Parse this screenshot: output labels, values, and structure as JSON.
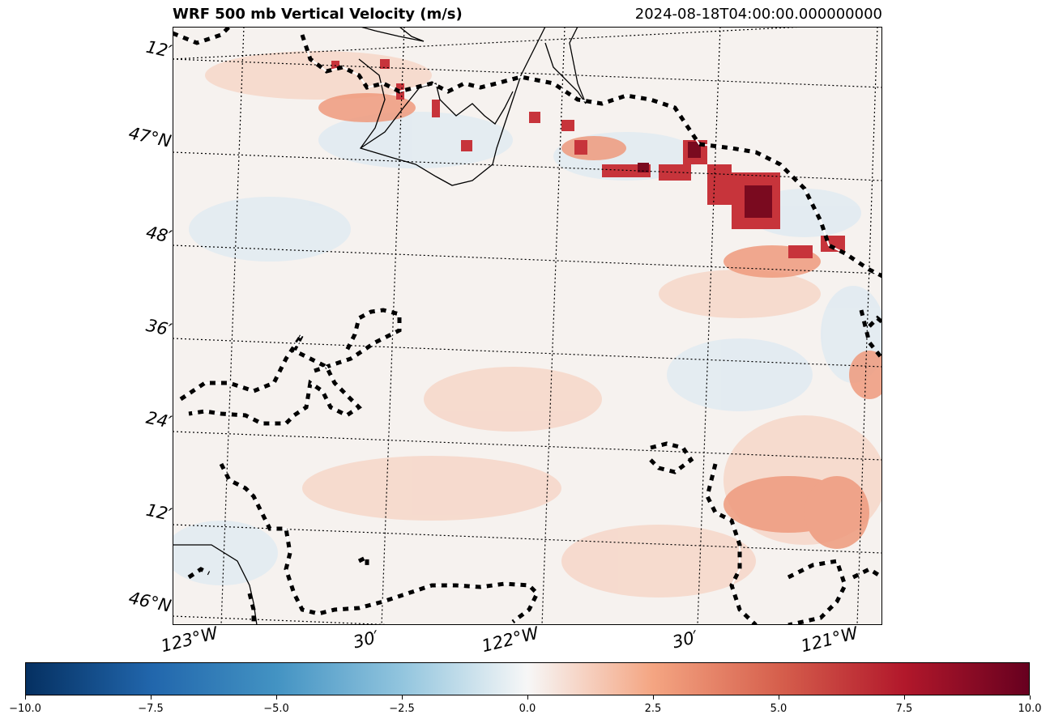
{
  "title": "WRF 500 mb Vertical Velocity (m/s)",
  "timestamp": "2024-08-18T04:00:00.000000000",
  "lat_labels": [
    "12′",
    "47°N",
    "48′",
    "36′",
    "24′",
    "12′",
    "46°N"
  ],
  "lon_labels": [
    "123°W",
    "30′",
    "122°W",
    "30′",
    "121°W"
  ],
  "colorbar": {
    "colormap": "RdBu_r",
    "min": -10.0,
    "max": 10.0,
    "tick_labels": [
      "−10.0",
      "−7.5",
      "−5.0",
      "−2.5",
      "0.0",
      "2.5",
      "5.0",
      "7.5",
      "10.0"
    ],
    "colors": [
      "#053061",
      "#2166ac",
      "#4393c3",
      "#92c5de",
      "#f7f7f7",
      "#f4a582",
      "#d6604d",
      "#b2182b",
      "#67001f"
    ]
  },
  "map": {
    "region": "Washington / Oregon Cascades",
    "field": "500 mb vertical velocity",
    "background_color": "#f5f4f2"
  }
}
